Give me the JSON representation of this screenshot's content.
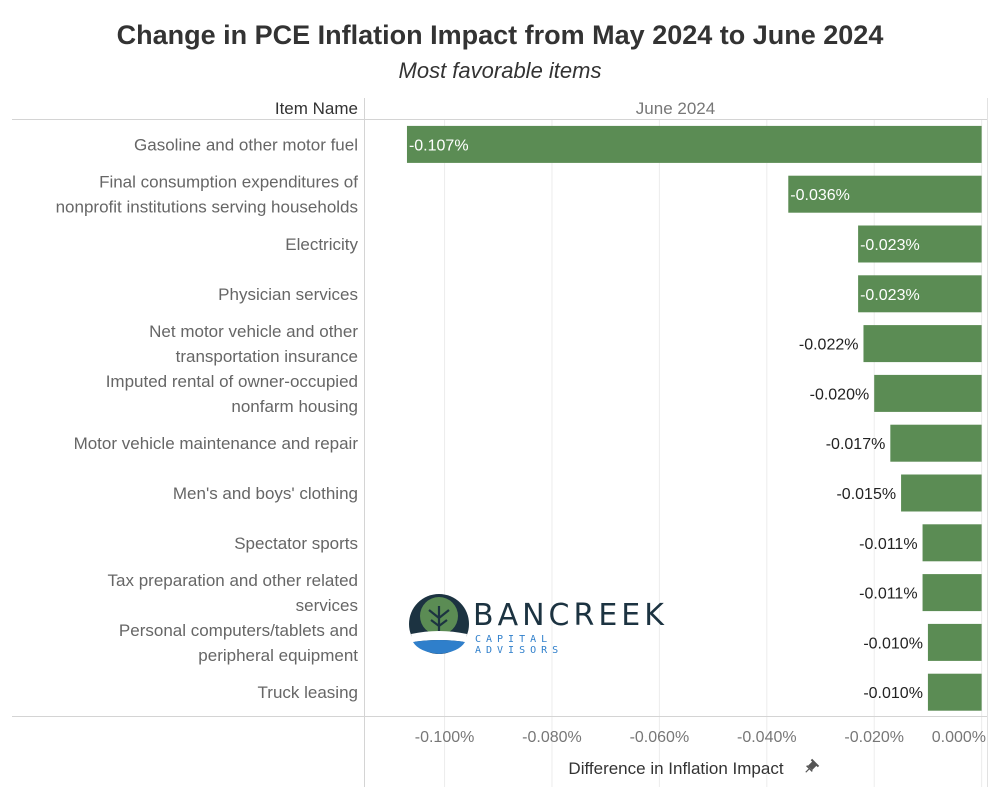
{
  "header": {
    "title": "Change in PCE Inflation Impact from May 2024 to June 2024",
    "subtitle": "Most favorable items",
    "item_column": "Item Name",
    "value_column": "June 2024"
  },
  "chart_data": {
    "type": "bar",
    "orientation": "horizontal",
    "title": "Change in PCE Inflation Impact from May 2024 to June 2024",
    "subtitle": "Most favorable items",
    "xlabel": "Difference in Inflation Impact",
    "ylabel": "Item Name",
    "column_header": "June 2024",
    "xlim": [
      -0.115,
      0.001
    ],
    "x_ticks": [
      -0.1,
      -0.08,
      -0.06,
      -0.04,
      -0.02,
      0.0
    ],
    "x_tick_labels": [
      "-0.100%",
      "-0.080%",
      "-0.060%",
      "-0.040%",
      "-0.020%",
      "0.000%"
    ],
    "grid": true,
    "bar_color": "#5b8c54",
    "categories": [
      [
        "Gasoline and other motor fuel"
      ],
      [
        "Final consumption expenditures of",
        "nonprofit institutions serving households"
      ],
      [
        "Electricity"
      ],
      [
        "Physician services"
      ],
      [
        "Net motor vehicle and other",
        "transportation insurance"
      ],
      [
        "Imputed rental of owner-occupied",
        "nonfarm housing"
      ],
      [
        "Motor vehicle maintenance and repair"
      ],
      [
        "Men's and boys' clothing"
      ],
      [
        "Spectator sports"
      ],
      [
        "Tax preparation and other related",
        "services"
      ],
      [
        "Personal computers/tablets and",
        "peripheral equipment"
      ],
      [
        "Truck leasing"
      ]
    ],
    "values": [
      -0.107,
      -0.036,
      -0.023,
      -0.023,
      -0.022,
      -0.02,
      -0.017,
      -0.015,
      -0.011,
      -0.011,
      -0.01,
      -0.01
    ],
    "value_labels": [
      "-0.107%",
      "-0.036%",
      "-0.023%",
      "-0.023%",
      "-0.022%",
      "-0.020%",
      "-0.017%",
      "-0.015%",
      "-0.011%",
      "-0.011%",
      "-0.010%",
      "-0.010%"
    ]
  },
  "logo": {
    "name": "BANCREEK",
    "tagline": "CAPITAL ADVISORS",
    "icon": "tree-over-water-icon"
  },
  "colors": {
    "bar": "#5b8c54",
    "logo_dark": "#1c3341",
    "logo_blue": "#2f7fcb"
  }
}
